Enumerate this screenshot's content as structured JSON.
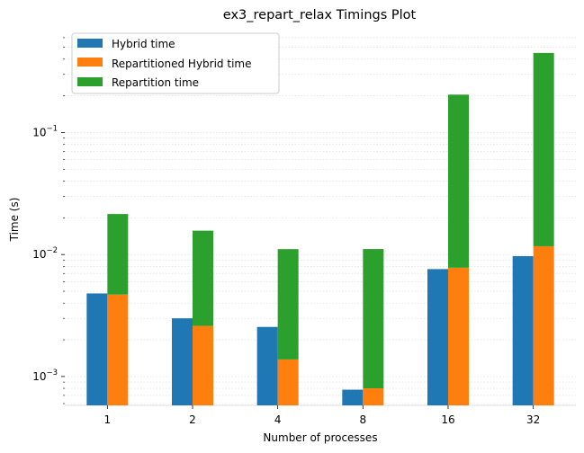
{
  "chart_data": {
    "type": "bar",
    "title": "ex3_repart_relax Timings Plot",
    "xlabel": "Number of processes",
    "ylabel": "Time (s)",
    "yscale": "log",
    "ylim": [
      0.00058,
      0.62
    ],
    "categories": [
      "1",
      "2",
      "4",
      "8",
      "16",
      "32"
    ],
    "series": [
      {
        "name": "Hybrid time",
        "color": "#1f77b4",
        "values": [
          0.0048,
          0.003,
          0.00255,
          0.00078,
          0.0076,
          0.0097
        ]
      },
      {
        "name": "Repartitioned Hybrid time",
        "color": "#ff7f0e",
        "values": [
          0.0047,
          0.0026,
          0.00138,
          0.0008,
          0.0078,
          0.0117
        ]
      },
      {
        "name": "Repartition time",
        "color": "#2ca02c",
        "values": [
          0.0168,
          0.0131,
          0.0097,
          0.0103,
          0.197,
          0.438
        ],
        "stacked_on": "Repartitioned Hybrid time"
      }
    ],
    "yticks": [
      {
        "base": "10",
        "exp": "−3",
        "value": 0.001
      },
      {
        "base": "10",
        "exp": "−2",
        "value": 0.01
      },
      {
        "base": "10",
        "exp": "−1",
        "value": 0.1
      }
    ],
    "grid": "minor-dotted",
    "legend_position": "top-left"
  }
}
